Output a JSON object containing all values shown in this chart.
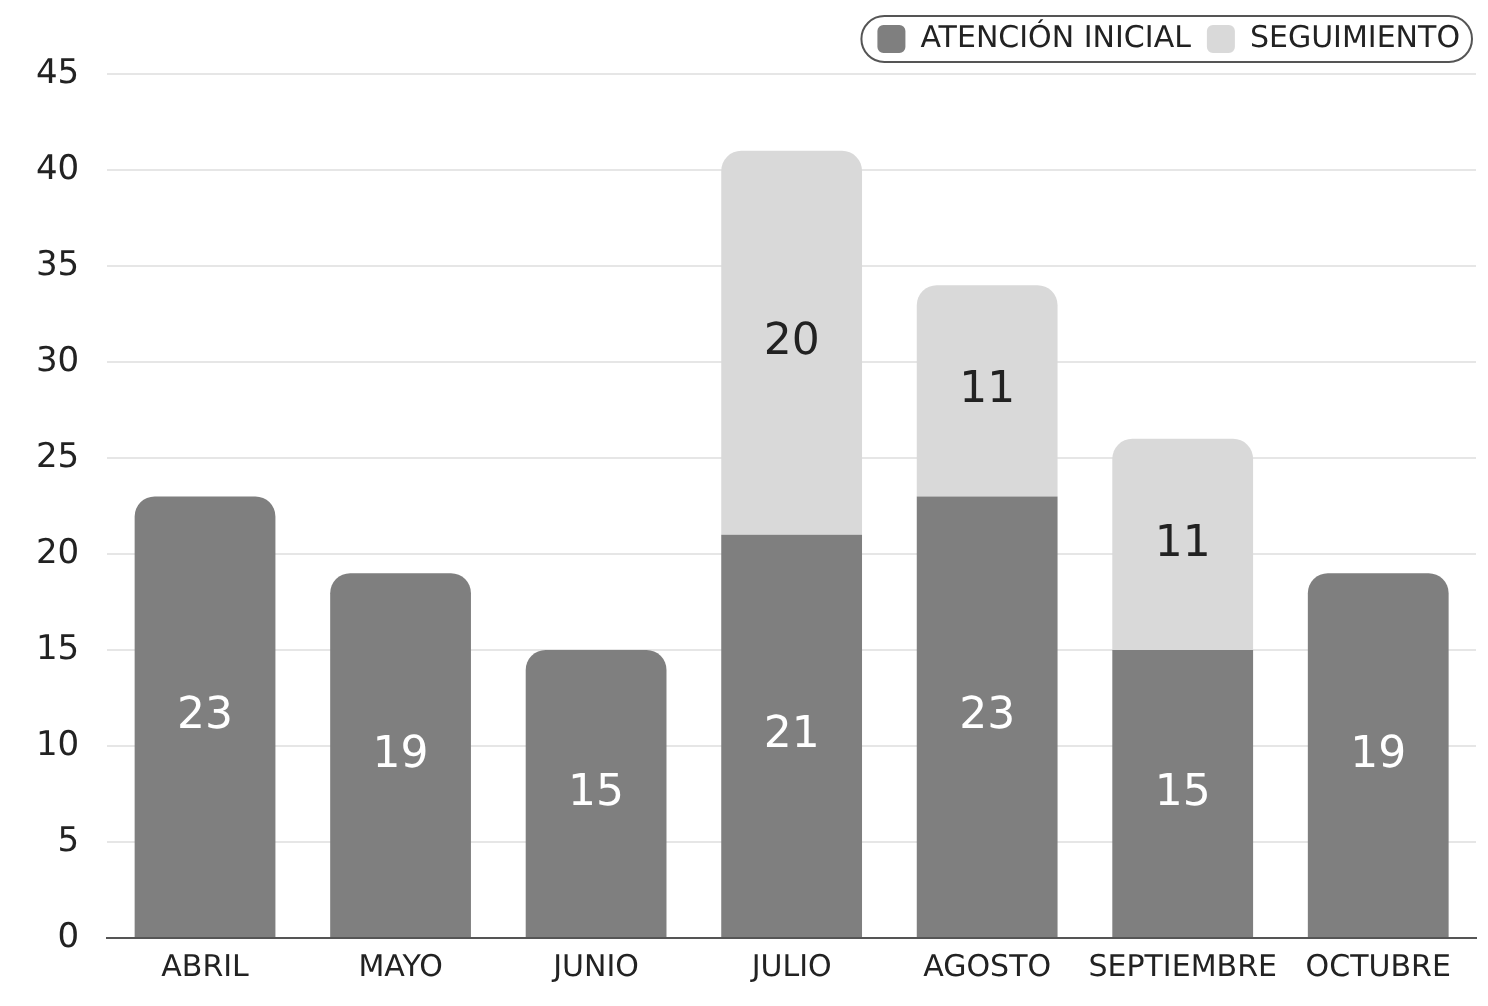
{
  "chart_data": {
    "type": "bar",
    "stacked": true,
    "categories": [
      "ABRIL",
      "MAYO",
      "JUNIO",
      "JULIO",
      "AGOSTO",
      "SEPTIEMBRE",
      "OCTUBRE"
    ],
    "series": [
      {
        "name": "ATENCIÓN INICIAL",
        "color": "#7f7f7f",
        "values": [
          23,
          19,
          15,
          21,
          23,
          15,
          19
        ]
      },
      {
        "name": "SEGUIMIENTO",
        "color": "#d9d9d9",
        "values": [
          null,
          null,
          null,
          20,
          11,
          11,
          null
        ]
      }
    ],
    "ylim": [
      0,
      45
    ],
    "yticks": [
      0,
      5,
      10,
      15,
      20,
      25,
      30,
      35,
      40,
      45
    ],
    "grid": "y",
    "legend": "top right",
    "data_labels": true
  }
}
